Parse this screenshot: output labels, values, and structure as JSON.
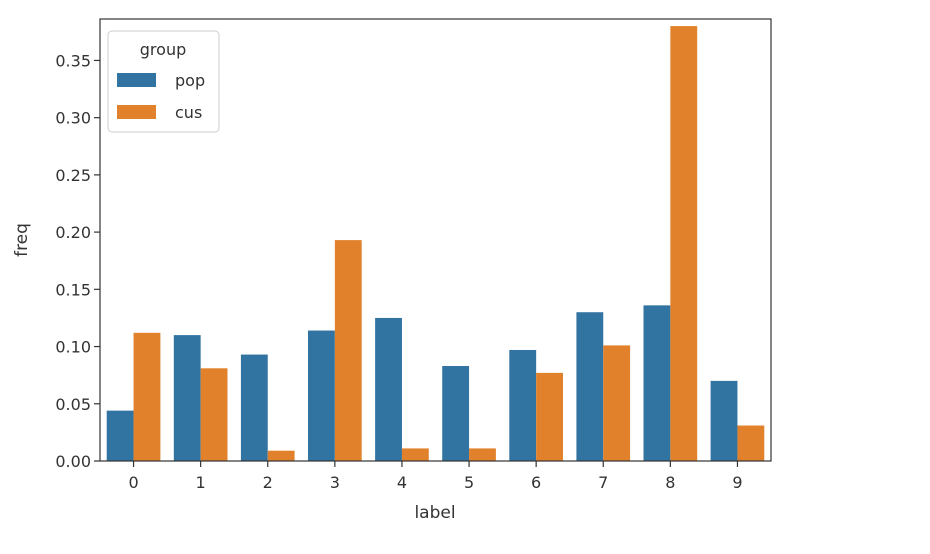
{
  "chart_data": {
    "type": "bar",
    "title": "",
    "xlabel": "label",
    "ylabel": "freq",
    "categories": [
      "0",
      "1",
      "2",
      "3",
      "4",
      "5",
      "6",
      "7",
      "8",
      "9"
    ],
    "series": [
      {
        "name": "pop",
        "color": "#3274a1",
        "values": [
          0.044,
          0.11,
          0.093,
          0.114,
          0.125,
          0.083,
          0.097,
          0.13,
          0.136,
          0.07
        ]
      },
      {
        "name": "cus",
        "color": "#e1812c",
        "values": [
          0.112,
          0.081,
          0.009,
          0.193,
          0.011,
          0.011,
          0.077,
          0.101,
          0.38,
          0.031
        ]
      }
    ],
    "ylim": [
      0,
      0.3862
    ],
    "yticks": [
      "0.00",
      "0.05",
      "0.10",
      "0.15",
      "0.20",
      "0.25",
      "0.30",
      "0.35"
    ],
    "legend": {
      "title": "group",
      "placement": "upper-left"
    },
    "grid": false
  }
}
